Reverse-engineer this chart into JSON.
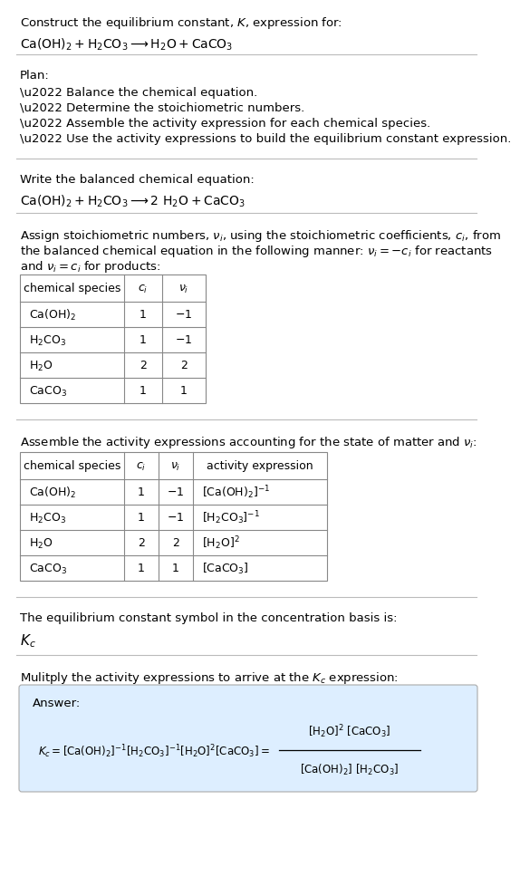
{
  "title_line1": "Construct the equilibrium constant, $K$, expression for:",
  "title_line2": "$\\mathrm{Ca(OH)_2 + H_2CO_3 \\longrightarrow H_2O + CaCO_3}$",
  "plan_header": "Plan:",
  "plan_items": [
    "\\u2022 Balance the chemical equation.",
    "\\u2022 Determine the stoichiometric numbers.",
    "\\u2022 Assemble the activity expression for each chemical species.",
    "\\u2022 Use the activity expressions to build the equilibrium constant expression."
  ],
  "balanced_header": "Write the balanced chemical equation:",
  "balanced_eq": "$\\mathrm{Ca(OH)_2 + H_2CO_3 \\longrightarrow 2\\ H_2O + CaCO_3}$",
  "stoich_text1": "Assign stoichiometric numbers, $\\nu_i$, using the stoichiometric coefficients, $c_i$, from",
  "stoich_text2": "the balanced chemical equation in the following manner: $\\nu_i = -c_i$ for reactants",
  "stoich_text3": "and $\\nu_i = c_i$ for products:",
  "t1_species": [
    "$\\mathrm{Ca(OH)_2}$",
    "$\\mathrm{H_2CO_3}$",
    "$\\mathrm{H_2O}$",
    "$\\mathrm{CaCO_3}$"
  ],
  "t1_ci": [
    "1",
    "1",
    "2",
    "1"
  ],
  "t1_nu": [
    "$-1$",
    "$-1$",
    "2",
    "1"
  ],
  "activity_header": "Assemble the activity expressions accounting for the state of matter and $\\nu_i$:",
  "t2_species": [
    "$\\mathrm{Ca(OH)_2}$",
    "$\\mathrm{H_2CO_3}$",
    "$\\mathrm{H_2O}$",
    "$\\mathrm{CaCO_3}$"
  ],
  "t2_ci": [
    "1",
    "1",
    "2",
    "1"
  ],
  "t2_nu": [
    "$-1$",
    "$-1$",
    "2",
    "1"
  ],
  "t2_act": [
    "$[\\mathrm{Ca(OH)_2}]^{-1}$",
    "$[\\mathrm{H_2CO_3}]^{-1}$",
    "$[\\mathrm{H_2O}]^{2}$",
    "$[\\mathrm{CaCO_3}]$"
  ],
  "kc_header": "The equilibrium constant symbol in the concentration basis is:",
  "kc_symbol": "$K_c$",
  "multiply_header": "Mulitply the activity expressions to arrive at the $K_c$ expression:",
  "answer_label": "Answer:",
  "bg_color": "#ffffff",
  "answer_box_color": "#ddeeff",
  "separator_color": "#bbbbbb",
  "text_color": "#000000",
  "table_border_color": "#888888",
  "font_size": 9.5,
  "font_size_small": 9.0
}
